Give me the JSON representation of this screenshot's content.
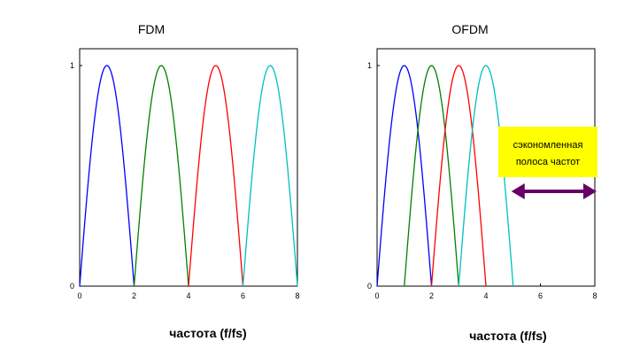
{
  "colors": {
    "c1": "#0000ff",
    "c2": "#008000",
    "c3": "#ff0000",
    "c4": "#00bfbf",
    "note_bg": "#ffff00",
    "arrow": "#660066"
  },
  "chart_data": [
    {
      "type": "line",
      "title": "FDM",
      "xlabel": "частота  (f/fs)",
      "xlim": [
        0,
        8
      ],
      "ylim": [
        0,
        1
      ],
      "x_ticks": [
        "0",
        "2",
        "4",
        "6",
        "8"
      ],
      "y_ticks": [
        "0",
        "1"
      ],
      "series": [
        {
          "color": "c1",
          "x": [
            0,
            1,
            2
          ],
          "y": [
            0,
            1,
            0
          ]
        },
        {
          "color": "c2",
          "x": [
            2,
            3,
            4
          ],
          "y": [
            0,
            1,
            0
          ]
        },
        {
          "color": "c3",
          "x": [
            4,
            5,
            6
          ],
          "y": [
            0,
            1,
            0
          ]
        },
        {
          "color": "c4",
          "x": [
            6,
            7,
            8
          ],
          "y": [
            0,
            1,
            0
          ]
        }
      ]
    },
    {
      "type": "line",
      "title": "OFDM",
      "xlabel": "частота  (f/fs)",
      "xlim": [
        0,
        8
      ],
      "ylim": [
        0,
        1
      ],
      "x_ticks": [
        "0",
        "2",
        "4",
        "6",
        "8"
      ],
      "y_ticks": [
        "0",
        "1"
      ],
      "series": [
        {
          "color": "c1",
          "x": [
            0,
            1,
            2
          ],
          "y": [
            0,
            1,
            0
          ]
        },
        {
          "color": "c2",
          "x": [
            1,
            2,
            3
          ],
          "y": [
            0,
            1,
            0
          ]
        },
        {
          "color": "c3",
          "x": [
            2,
            3,
            4
          ],
          "y": [
            0,
            1,
            0
          ]
        },
        {
          "color": "c4",
          "x": [
            3,
            4,
            5
          ],
          "y": [
            0,
            1,
            0
          ]
        }
      ],
      "annotation": {
        "lines": [
          "сэкономленная",
          "полоса частот"
        ],
        "arrow_from": 5,
        "arrow_to": 8
      }
    }
  ]
}
